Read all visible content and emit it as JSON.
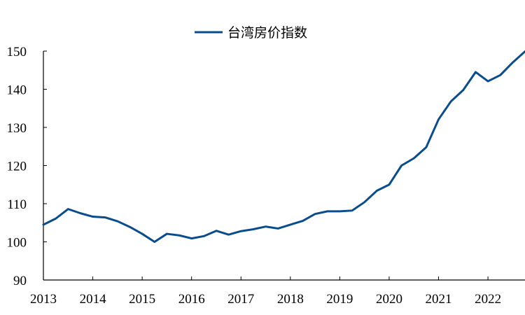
{
  "chart_data": {
    "type": "line",
    "title": "",
    "xlabel": "",
    "ylabel": "",
    "ylim": [
      90,
      150
    ],
    "yticks": [
      90,
      100,
      110,
      120,
      130,
      140,
      150
    ],
    "xlim": [
      2013.0,
      2022.75
    ],
    "xticks": [
      2013,
      2014,
      2015,
      2016,
      2017,
      2018,
      2019,
      2020,
      2021,
      2022
    ],
    "grid": false,
    "legend": "top-center",
    "series": [
      {
        "name": "台湾房价指数",
        "color": "#0a4d8c",
        "x": [
          2013.0,
          2013.25,
          2013.5,
          2013.75,
          2014.0,
          2014.25,
          2014.5,
          2014.75,
          2015.0,
          2015.25,
          2015.5,
          2015.75,
          2016.0,
          2016.25,
          2016.5,
          2016.75,
          2017.0,
          2017.25,
          2017.5,
          2017.75,
          2018.0,
          2018.25,
          2018.5,
          2018.75,
          2019.0,
          2019.25,
          2019.5,
          2019.75,
          2020.0,
          2020.25,
          2020.5,
          2020.75,
          2021.0,
          2021.25,
          2021.5,
          2021.75,
          2022.0,
          2022.25,
          2022.5,
          2022.75
        ],
        "y": [
          104.5,
          106.1,
          108.6,
          107.5,
          106.6,
          106.4,
          105.4,
          103.9,
          102.1,
          100.0,
          102.1,
          101.7,
          100.9,
          101.5,
          102.9,
          101.9,
          102.8,
          103.3,
          104.0,
          103.5,
          104.5,
          105.5,
          107.3,
          108.0,
          108.0,
          108.2,
          110.4,
          113.4,
          115.0,
          120.0,
          121.9,
          124.8,
          132.1,
          136.8,
          139.8,
          144.5,
          142.1,
          143.7,
          147.0,
          149.9
        ]
      }
    ]
  }
}
